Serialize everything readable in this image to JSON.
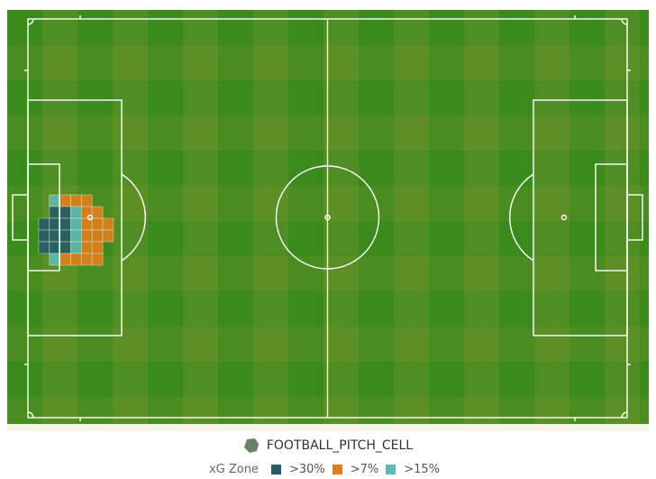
{
  "chart_data": {
    "type": "heatmap",
    "title": "FOOTBALL_PITCH_CELL",
    "legend": {
      "title": "xG Zone",
      "placement": "bottom-center",
      "entries": [
        {
          "label": ">30%",
          "color": "#235c66"
        },
        {
          "label": ">7%",
          "color": "#e07e1b"
        },
        {
          "label": ">15%",
          "color": "#5bbab3"
        }
      ]
    },
    "pitch": {
      "length_cells": 56,
      "width_cells": 34,
      "grass_color": "#3a8a1c",
      "line_color": "#ffffff"
    },
    "cells": [
      {
        "col": 2,
        "row": 15,
        "zone": ">15%"
      },
      {
        "col": 3,
        "row": 15,
        "zone": ">7%"
      },
      {
        "col": 4,
        "row": 15,
        "zone": ">7%"
      },
      {
        "col": 5,
        "row": 15,
        "zone": ">7%"
      },
      {
        "col": 2,
        "row": 16,
        "zone": ">30%"
      },
      {
        "col": 3,
        "row": 16,
        "zone": ">30%"
      },
      {
        "col": 4,
        "row": 16,
        "zone": ">15%"
      },
      {
        "col": 5,
        "row": 16,
        "zone": ">7%"
      },
      {
        "col": 6,
        "row": 16,
        "zone": ">7%"
      },
      {
        "col": 1,
        "row": 17,
        "zone": ">30%"
      },
      {
        "col": 2,
        "row": 17,
        "zone": ">30%"
      },
      {
        "col": 3,
        "row": 17,
        "zone": ">30%"
      },
      {
        "col": 4,
        "row": 17,
        "zone": ">15%"
      },
      {
        "col": 5,
        "row": 17,
        "zone": ">7%"
      },
      {
        "col": 6,
        "row": 17,
        "zone": ">7%"
      },
      {
        "col": 7,
        "row": 17,
        "zone": ">7%"
      },
      {
        "col": 1,
        "row": 18,
        "zone": ">30%"
      },
      {
        "col": 2,
        "row": 18,
        "zone": ">30%"
      },
      {
        "col": 3,
        "row": 18,
        "zone": ">30%"
      },
      {
        "col": 4,
        "row": 18,
        "zone": ">15%"
      },
      {
        "col": 5,
        "row": 18,
        "zone": ">7%"
      },
      {
        "col": 6,
        "row": 18,
        "zone": ">7%"
      },
      {
        "col": 7,
        "row": 18,
        "zone": ">7%"
      },
      {
        "col": 1,
        "row": 19,
        "zone": ">30%"
      },
      {
        "col": 2,
        "row": 19,
        "zone": ">30%"
      },
      {
        "col": 3,
        "row": 19,
        "zone": ">30%"
      },
      {
        "col": 4,
        "row": 19,
        "zone": ">15%"
      },
      {
        "col": 5,
        "row": 19,
        "zone": ">7%"
      },
      {
        "col": 6,
        "row": 19,
        "zone": ">7%"
      },
      {
        "col": 2,
        "row": 20,
        "zone": ">15%"
      },
      {
        "col": 3,
        "row": 20,
        "zone": ">7%"
      },
      {
        "col": 4,
        "row": 20,
        "zone": ">7%"
      },
      {
        "col": 5,
        "row": 20,
        "zone": ">7%"
      },
      {
        "col": 6,
        "row": 20,
        "zone": ">7%"
      }
    ]
  }
}
